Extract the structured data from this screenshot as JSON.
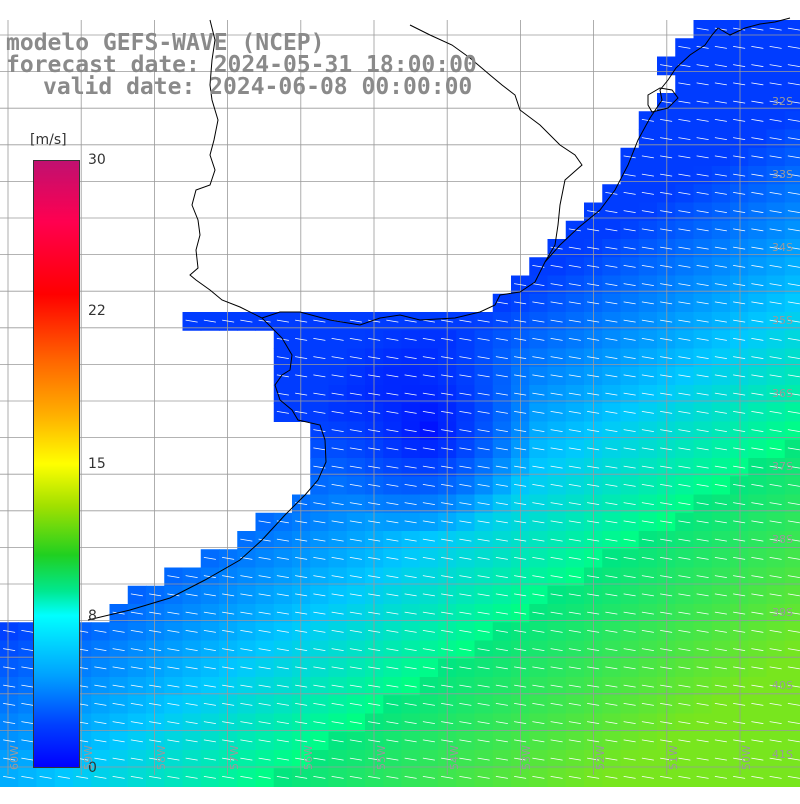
{
  "header": {
    "line1": "modelo GEFS-WAVE (NCEP)",
    "line2": "forecast date: 2024-05-31 18:00:00",
    "line3": "valid date: 2024-06-08 00:00:00"
  },
  "colorbar": {
    "unit": "[m/s]",
    "ticks": [
      "30",
      "22",
      "15",
      "8",
      "0"
    ],
    "tick_values": [
      30,
      22,
      15,
      8,
      0
    ],
    "colors": [
      "#0000ff",
      "#0040ff",
      "#00a0ff",
      "#00ffff",
      "#00e890",
      "#20d020",
      "#a0e000",
      "#ffff00",
      "#ffb000",
      "#ff6600",
      "#ff0000",
      "#ff0050",
      "#c01070"
    ]
  },
  "map": {
    "lat_labels": [
      "32S",
      "33S",
      "34S",
      "35S",
      "36S",
      "37S",
      "38S",
      "39S",
      "40S",
      "41S"
    ],
    "lon_labels": [
      "60W",
      "59W",
      "58W",
      "57W",
      "56W",
      "55W",
      "54W",
      "53W",
      "52W",
      "51W",
      "50W"
    ],
    "land_color": "#ffffff",
    "grid_color": "#9a9a9a",
    "arrow_color": "#ffffff"
  }
}
